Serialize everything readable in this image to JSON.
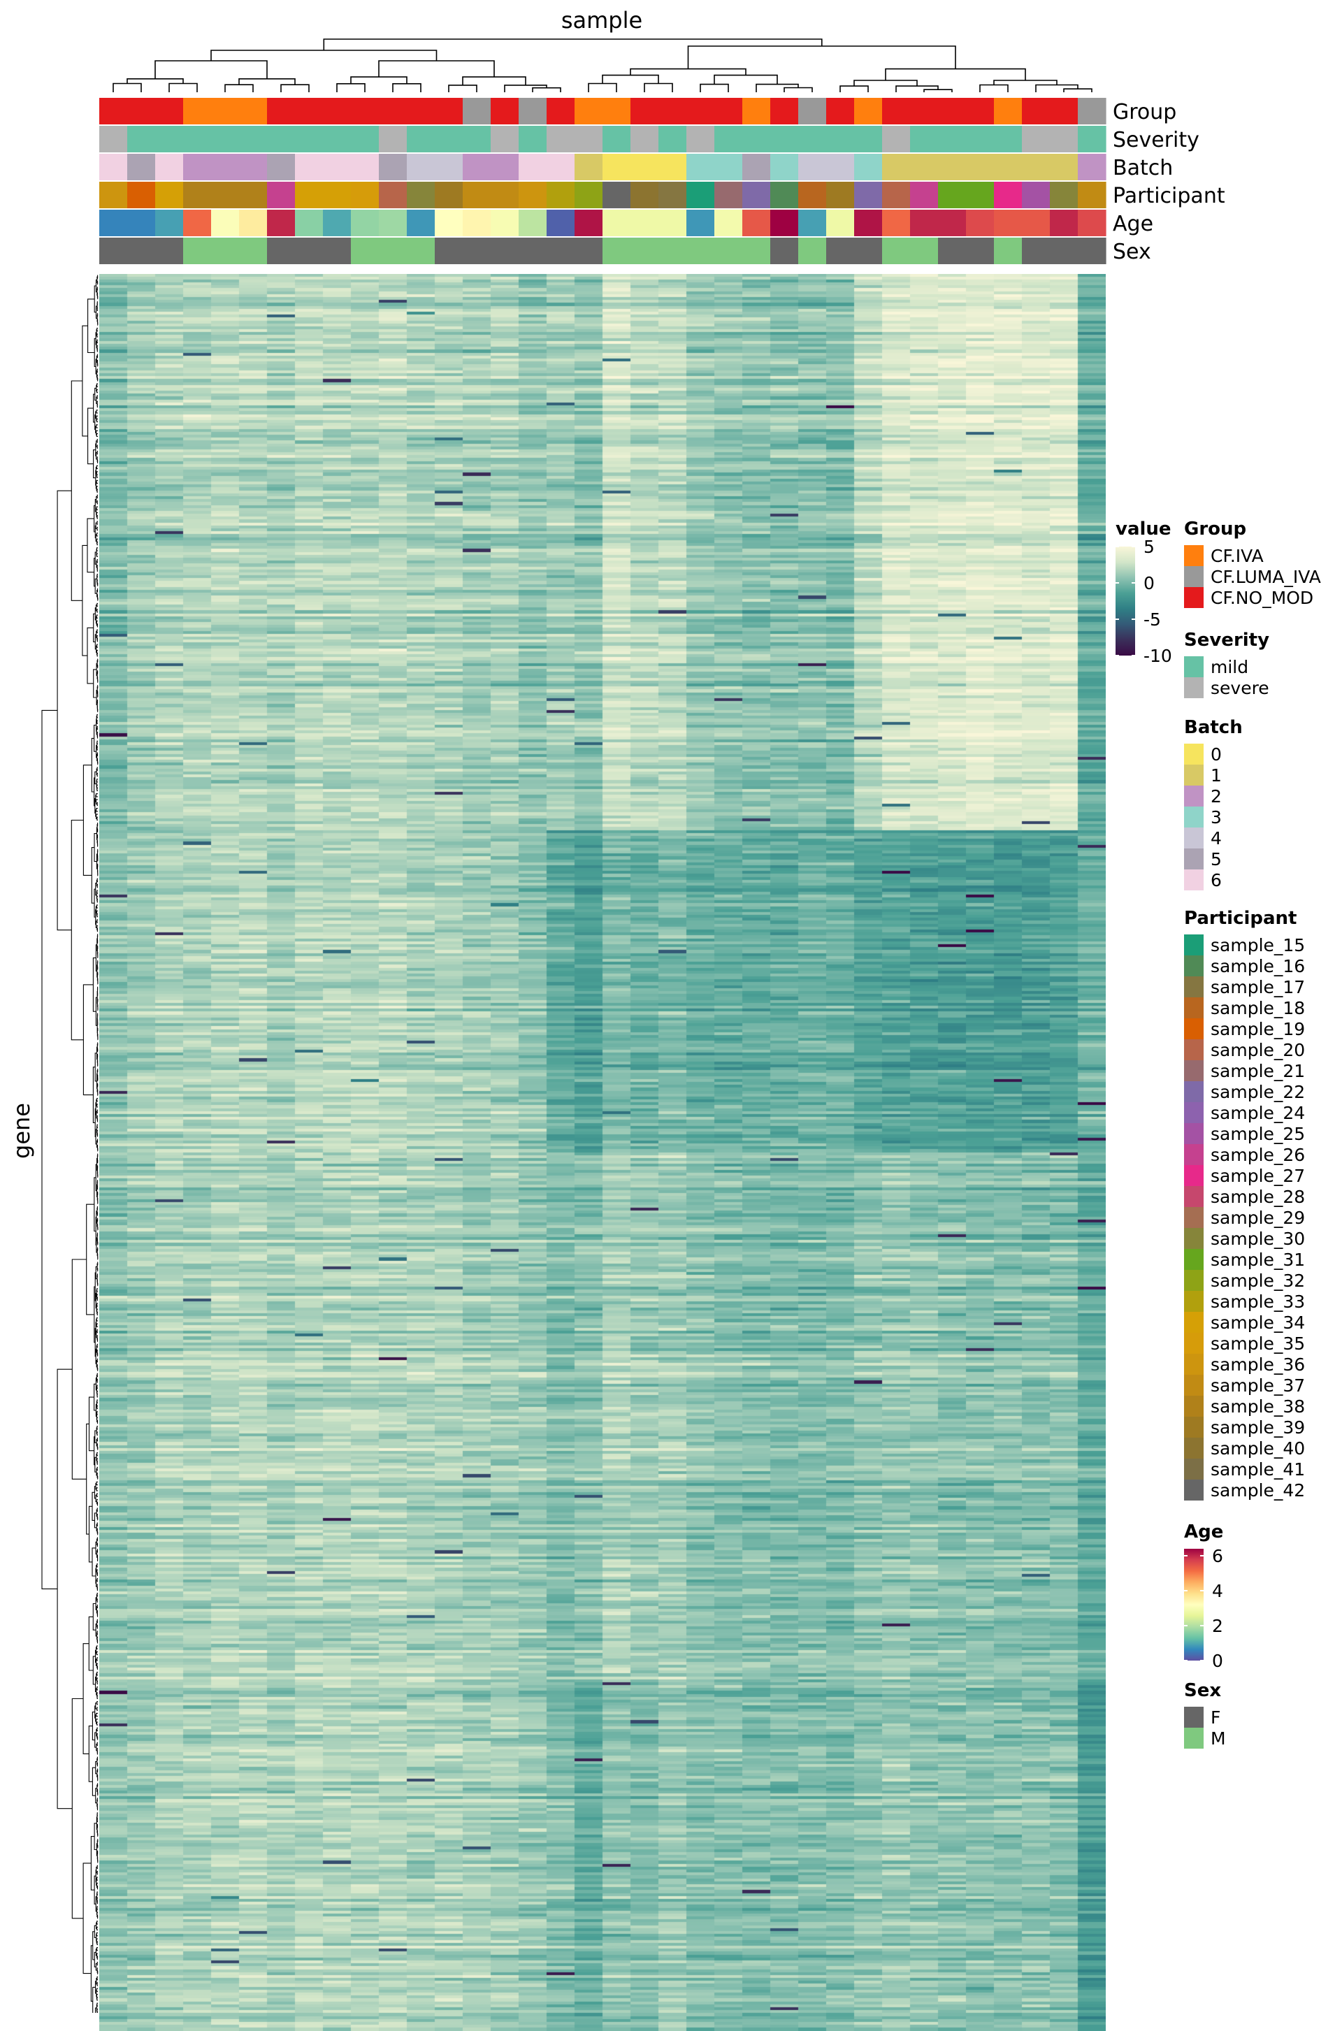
{
  "chart_data": {
    "type": "heatmap",
    "title": "sample",
    "xlabel": "sample",
    "ylabel": "gene",
    "n_columns": 36,
    "n_rows": 600,
    "row_dendrogram": true,
    "column_dendrogram": true,
    "annotation_tracks": [
      "Group",
      "Severity",
      "Batch",
      "Participant",
      "Age",
      "Sex"
    ],
    "column_annotations": {
      "Group": [
        "CF.NO_MOD",
        "CF.NO_MOD",
        "CF.NO_MOD",
        "CF.IVA",
        "CF.IVA",
        "CF.IVA",
        "CF.NO_MOD",
        "CF.NO_MOD",
        "CF.NO_MOD",
        "CF.NO_MOD",
        "CF.NO_MOD",
        "CF.NO_MOD",
        "CF.NO_MOD",
        "CF.LUMA_IVA",
        "CF.NO_MOD",
        "CF.LUMA_IVA",
        "CF.NO_MOD",
        "CF.IVA",
        "CF.IVA",
        "CF.NO_MOD",
        "CF.NO_MOD",
        "CF.NO_MOD",
        "CF.NO_MOD",
        "CF.IVA",
        "CF.NO_MOD",
        "CF.LUMA_IVA",
        "CF.NO_MOD",
        "CF.IVA",
        "CF.NO_MOD",
        "CF.NO_MOD",
        "CF.NO_MOD",
        "CF.NO_MOD",
        "CF.IVA",
        "CF.NO_MOD",
        "CF.NO_MOD",
        "CF.LUMA_IVA"
      ],
      "Severity": [
        "severe",
        "mild",
        "mild",
        "mild",
        "mild",
        "mild",
        "mild",
        "mild",
        "mild",
        "mild",
        "severe",
        "mild",
        "mild",
        "mild",
        "severe",
        "mild",
        "severe",
        "severe",
        "mild",
        "severe",
        "mild",
        "severe",
        "mild",
        "mild",
        "mild",
        "mild",
        "mild",
        "mild",
        "severe",
        "mild",
        "mild",
        "mild",
        "mild",
        "severe",
        "severe",
        "mild"
      ],
      "Batch": [
        "6",
        "5",
        "6",
        "2",
        "2",
        "2",
        "5",
        "6",
        "6",
        "6",
        "5",
        "4",
        "4",
        "2",
        "2",
        "6",
        "6",
        "1",
        "0",
        "0",
        "0",
        "3",
        "3",
        "5",
        "3",
        "4",
        "4",
        "3",
        "1",
        "1",
        "1",
        "1",
        "1",
        "1",
        "1",
        "2"
      ],
      "Participant": [
        "sample_36",
        "sample_19",
        "sample_34",
        "sample_38",
        "sample_38",
        "sample_38",
        "sample_26",
        "sample_34",
        "sample_34",
        "sample_35",
        "sample_20",
        "sample_30",
        "sample_39",
        "sample_37",
        "sample_37",
        "sample_36",
        "sample_33",
        "sample_32",
        "sample_42",
        "sample_40",
        "sample_17",
        "sample_15",
        "sample_21",
        "sample_22",
        "sample_16",
        "sample_18",
        "sample_39",
        "sample_22",
        "sample_20",
        "sample_26",
        "sample_31",
        "sample_31",
        "sample_27",
        "sample_25",
        "sample_30",
        "sample_37"
      ],
      "Age": [
        0.6,
        0.6,
        0.9,
        5.2,
        3.1,
        3.6,
        6.0,
        1.6,
        1.0,
        1.7,
        1.8,
        0.8,
        3.2,
        3.4,
        3.0,
        2.1,
        0.2,
        6.2,
        2.8,
        2.8,
        2.8,
        0.8,
        2.9,
        5.4,
        6.4,
        0.9,
        2.8,
        6.2,
        5.2,
        6.0,
        6.0,
        5.6,
        5.4,
        5.4,
        6.0,
        5.6
      ],
      "Sex": [
        "F",
        "F",
        "F",
        "M",
        "M",
        "M",
        "F",
        "F",
        "F",
        "M",
        "M",
        "M",
        "F",
        "F",
        "F",
        "F",
        "F",
        "F",
        "M",
        "M",
        "M",
        "M",
        "M",
        "M",
        "F",
        "M",
        "F",
        "F",
        "M",
        "M",
        "F",
        "F",
        "M",
        "F",
        "F",
        "F"
      ]
    },
    "legends": {
      "value": {
        "title": "value",
        "ticks": [
          5,
          0,
          -5,
          -10
        ],
        "range": [
          -10,
          5
        ],
        "colors": [
          "#f9f6d9",
          "#d3e6c9",
          "#8fc3b2",
          "#4ba095",
          "#2f7f85",
          "#345a77",
          "#3a2f5a",
          "#3a0a45"
        ]
      },
      "Group": {
        "title": "Group",
        "entries": [
          {
            "label": "CF.IVA",
            "color": "#ff7f0e"
          },
          {
            "label": "CF.LUMA_IVA",
            "color": "#999999"
          },
          {
            "label": "CF.NO_MOD",
            "color": "#e41a1c"
          }
        ]
      },
      "Severity": {
        "title": "Severity",
        "entries": [
          {
            "label": "mild",
            "color": "#66c2a5"
          },
          {
            "label": "severe",
            "color": "#b3b3b3"
          }
        ]
      },
      "Batch": {
        "title": "Batch",
        "entries": [
          {
            "label": "0",
            "color": "#f6e45e"
          },
          {
            "label": "1",
            "color": "#d8c965"
          },
          {
            "label": "2",
            "color": "#c093c4"
          },
          {
            "label": "3",
            "color": "#8fd4c9"
          },
          {
            "label": "4",
            "color": "#c9c6d6"
          },
          {
            "label": "5",
            "color": "#aba3b3"
          },
          {
            "label": "6",
            "color": "#f1d1e2"
          }
        ]
      },
      "Participant": {
        "title": "Participant",
        "entries": [
          {
            "label": "sample_15",
            "color": "#1b9e77"
          },
          {
            "label": "sample_16",
            "color": "#508a56"
          },
          {
            "label": "sample_17",
            "color": "#857641"
          },
          {
            "label": "sample_18",
            "color": "#b8661f"
          },
          {
            "label": "sample_19",
            "color": "#d95f02"
          },
          {
            "label": "sample_20",
            "color": "#b7654a"
          },
          {
            "label": "sample_21",
            "color": "#976a6e"
          },
          {
            "label": "sample_22",
            "color": "#7f6aa8"
          },
          {
            "label": "sample_24",
            "color": "#8d62ae"
          },
          {
            "label": "sample_25",
            "color": "#a452a4"
          },
          {
            "label": "sample_26",
            "color": "#c5418f"
          },
          {
            "label": "sample_27",
            "color": "#e7298a"
          },
          {
            "label": "sample_28",
            "color": "#c6476d"
          },
          {
            "label": "sample_29",
            "color": "#a56e52"
          },
          {
            "label": "sample_30",
            "color": "#86853a"
          },
          {
            "label": "sample_31",
            "color": "#66a61e"
          },
          {
            "label": "sample_32",
            "color": "#8ea316"
          },
          {
            "label": "sample_33",
            "color": "#b1a00d"
          },
          {
            "label": "sample_34",
            "color": "#d5a006"
          },
          {
            "label": "sample_35",
            "color": "#d69c0a"
          },
          {
            "label": "sample_36",
            "color": "#cd950f"
          },
          {
            "label": "sample_37",
            "color": "#c18b14"
          },
          {
            "label": "sample_38",
            "color": "#b0811a"
          },
          {
            "label": "sample_39",
            "color": "#9e7a22"
          },
          {
            "label": "sample_40",
            "color": "#8c7430"
          },
          {
            "label": "sample_41",
            "color": "#7c6f46"
          },
          {
            "label": "sample_42",
            "color": "#666666"
          }
        ]
      },
      "Age": {
        "title": "Age",
        "ticks": [
          6,
          4,
          2,
          0
        ],
        "range": [
          0,
          6.4
        ],
        "colors": [
          "#5e4fa2",
          "#3288bd",
          "#66c2a5",
          "#abdda4",
          "#e6f598",
          "#ffffbf",
          "#fee08b",
          "#fdae61",
          "#f46d43",
          "#d53e4f",
          "#9e0142"
        ]
      },
      "Sex": {
        "title": "Sex",
        "entries": [
          {
            "label": "F",
            "color": "#666666"
          },
          {
            "label": "M",
            "color": "#7fc97f"
          }
        ]
      }
    },
    "column_profiles": {
      "level": [
        0.8,
        1.0,
        1.6,
        1.4,
        1.7,
        1.7,
        1.3,
        1.8,
        1.8,
        1.8,
        1.7,
        1.5,
        1.6,
        1.3,
        1.4,
        1.1,
        0.9,
        0.5,
        2.0,
        1.6,
        1.6,
        0.8,
        0.6,
        0.4,
        0.4,
        0.4,
        0.3,
        0.7,
        1.0,
        0.8,
        0.7,
        0.6,
        0.6,
        0.6,
        0.5,
        -0.5
      ],
      "row_blocks": [
        {
          "rows": [
            0,
            190
          ],
          "shift": [
            -0.5,
            0.2,
            0.1,
            0.5,
            0.3,
            0.2,
            0.3,
            0.3,
            0.2,
            0.2,
            0.4,
            0.3,
            0.2,
            0,
            0.2,
            -0.2,
            0.5,
            0.3,
            0.8,
            0.6,
            0.6,
            0.2,
            0.2,
            0.2,
            0.2,
            0.2,
            0.1,
            1.5,
            2.2,
            2.5,
            2.7,
            3.0,
            2.9,
            2.8,
            3.0,
            -0.2
          ]
        },
        {
          "rows": [
            190,
            300
          ],
          "shift": [
            0,
            0.3,
            0.2,
            0.3,
            0.3,
            0.3,
            0.2,
            0.3,
            0.3,
            0.3,
            0.3,
            0.2,
            0.2,
            0.2,
            0,
            -0.3,
            -1.5,
            -1.8,
            -1.7,
            -1.8,
            -1.4,
            -1.2,
            -1.1,
            -0.9,
            -1.0,
            -0.6,
            -0.7,
            -1.8,
            -2.2,
            -2.1,
            -2.2,
            -2.1,
            -2.2,
            -2.1,
            -1.9,
            0.2
          ]
        },
        {
          "rows": [
            300,
            480
          ],
          "shift": [
            0,
            0.2,
            0.2,
            0.2,
            0.2,
            0.2,
            0.2,
            0.1,
            0.1,
            0.1,
            0.1,
            0.2,
            0.1,
            0,
            0,
            0,
            -0.5,
            0.2,
            -0.3,
            -0.3,
            -0.2,
            0,
            0,
            0,
            0,
            0,
            0,
            0.2,
            0,
            0.1,
            0,
            0,
            0,
            0,
            0.1,
            -0.2
          ]
        },
        {
          "rows": [
            480,
            600
          ],
          "shift": [
            0,
            0.1,
            0,
            0.2,
            0.2,
            0.2,
            0.1,
            0.1,
            0.1,
            0.1,
            0.1,
            0.1,
            0.1,
            0.1,
            0,
            -0.2,
            -0.6,
            -1.2,
            -1.3,
            -1.3,
            -0.6,
            -0.3,
            -0.2,
            -0.1,
            0,
            0,
            0,
            0,
            0,
            0,
            0,
            0,
            0,
            0,
            0,
            -1.2
          ]
        }
      ]
    }
  }
}
